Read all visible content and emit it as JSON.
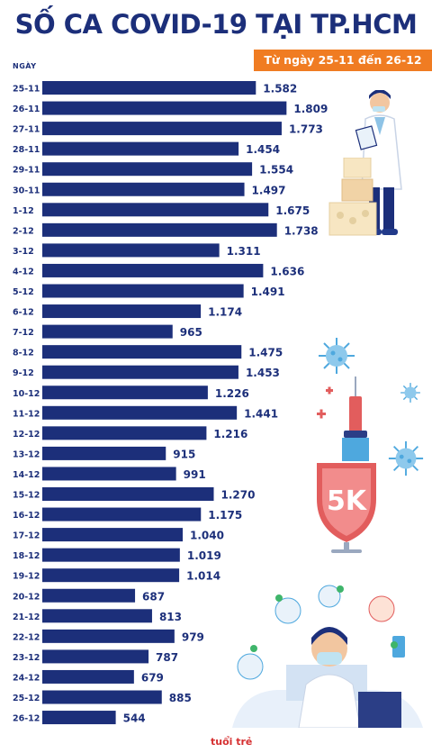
{
  "header": {
    "title": "SỐ CA COVID-19 TẠI TP.HCM",
    "date_range": "Từ ngày 25-11 đến 26-12"
  },
  "chart_data": {
    "type": "bar",
    "orientation": "horizontal",
    "title": "SỐ CA COVID-19 TẠI TP.HCM",
    "subtitle": "Từ ngày 25-11 đến 26-12",
    "ylabel": "NGÀY",
    "categories": [
      "25-11",
      "26-11",
      "27-11",
      "28-11",
      "29-11",
      "30-11",
      "1-12",
      "2-12",
      "3-12",
      "4-12",
      "5-12",
      "6-12",
      "7-12",
      "8-12",
      "9-12",
      "10-12",
      "11-12",
      "12-12",
      "13-12",
      "14-12",
      "15-12",
      "16-12",
      "17-12",
      "18-12",
      "19-12",
      "20-12",
      "21-12",
      "22-12",
      "23-12",
      "24-12",
      "25-12",
      "26-12"
    ],
    "values": [
      1582,
      1809,
      1773,
      1454,
      1554,
      1497,
      1675,
      1738,
      1311,
      1636,
      1491,
      1174,
      965,
      1475,
      1453,
      1226,
      1441,
      1216,
      915,
      991,
      1270,
      1175,
      1040,
      1019,
      1014,
      687,
      813,
      979,
      787,
      679,
      885,
      544
    ],
    "value_labels": [
      "1.582",
      "1.809",
      "1.773",
      "1.454",
      "1.554",
      "1.497",
      "1.675",
      "1.738",
      "1.311",
      "1.636",
      "1.491",
      "1.174",
      "965",
      "1.475",
      "1.453",
      "1.226",
      "1.441",
      "1.216",
      "915",
      "991",
      "1.270",
      "1.175",
      "1.040",
      "1.019",
      "1.014",
      "687",
      "813",
      "979",
      "787",
      "679",
      "885",
      "544"
    ],
    "bar_color": "#1c2f7a",
    "grid": false
  },
  "illustrations": {
    "badge_text": "5K",
    "logo_text": "tuổi trẻ",
    "icons": [
      "doctor-icon",
      "medicine-boxes-icon",
      "virus-icon",
      "syringe-shield-icon",
      "medical-team-icon"
    ]
  },
  "colors": {
    "title": "#1c2f7a",
    "banner": "#f07c22",
    "bar": "#1c2f7a",
    "label": "#1c2f7a",
    "shield": "#e25d5d",
    "virus": "#4ea8de"
  }
}
